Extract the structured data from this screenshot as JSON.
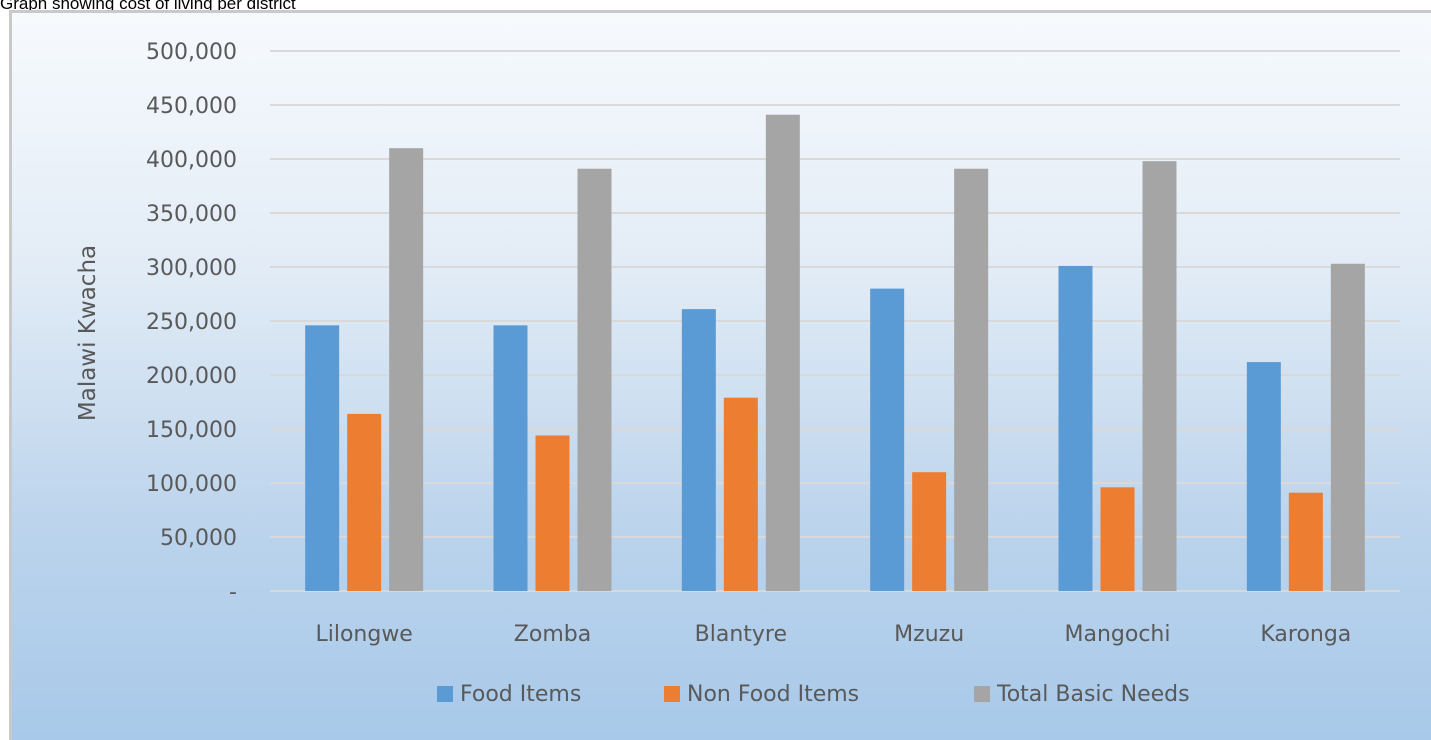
{
  "caption": "Graph showing cost of living per district",
  "chart_data": {
    "type": "bar",
    "title": "",
    "xlabel": "",
    "ylabel": "Malawi Kwacha",
    "categories": [
      "Lilongwe",
      "Zomba",
      "Blantyre",
      "Mzuzu",
      "Mangochi",
      "Karonga"
    ],
    "series": [
      {
        "name": "Food Items",
        "color": "#5b9bd5",
        "values": [
          246000,
          246000,
          261000,
          280000,
          301000,
          212000
        ]
      },
      {
        "name": "Non Food Items",
        "color": "#ed7d31",
        "values": [
          164000,
          144000,
          179000,
          110000,
          96000,
          91000
        ]
      },
      {
        "name": "Total Basic Needs",
        "color": "#a5a5a5",
        "values": [
          410000,
          391000,
          441000,
          391000,
          398000,
          303000
        ]
      }
    ],
    "ylim": [
      0,
      500000
    ],
    "yticks": [
      0,
      50000,
      100000,
      150000,
      200000,
      250000,
      300000,
      350000,
      400000,
      450000,
      500000
    ],
    "ytick_labels": [
      "-",
      "50,000",
      "100,000",
      "150,000",
      "200,000",
      "250,000",
      "300,000",
      "350,000",
      "400,000",
      "450,000",
      "500,000"
    ],
    "grid": true,
    "legend_position": "bottom"
  }
}
